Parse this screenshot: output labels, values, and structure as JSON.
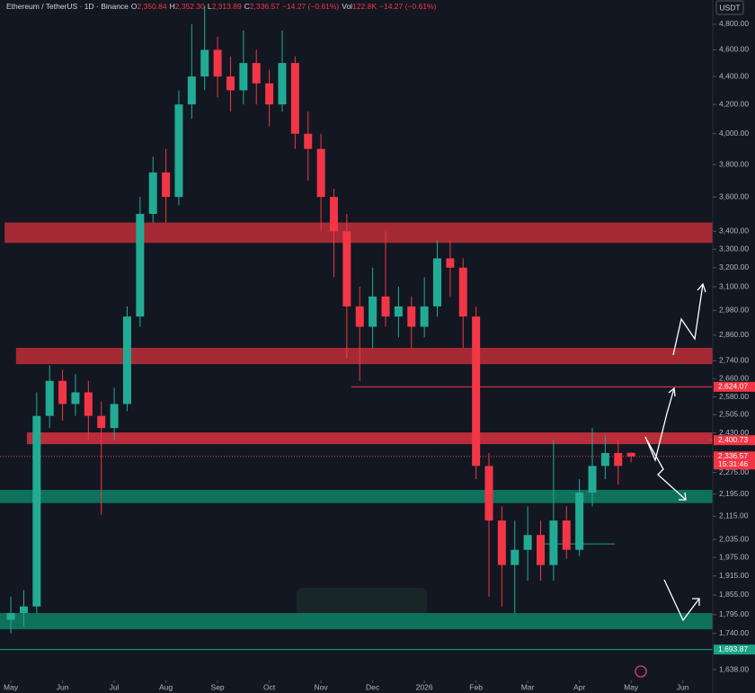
{
  "chart_data": {
    "type": "candlestick",
    "header": {
      "symbol": "Ethereum / TetherUS · 1D · Binance",
      "fields": [
        {
          "key": "O",
          "text": "2,350.84"
        },
        {
          "key": "H",
          "text": "2,352.30"
        },
        {
          "key": "L",
          "text": "2,313.89"
        },
        {
          "key": "C",
          "text": "2,336.57"
        },
        {
          "key": "",
          "text": "−14.27 (−0.61%)"
        },
        {
          "key": "Vol",
          "text": "122.8K"
        },
        {
          "key": "",
          "text": "−14.27 (−0.61%)"
        }
      ]
    },
    "currency": "USDT",
    "log_scale": true,
    "up_color": "#22ab94",
    "down_color": "#f23645",
    "x": [
      0,
      0.25,
      0.5,
      0.75,
      1,
      1.25,
      1.5,
      1.75,
      2,
      2.25,
      2.5,
      2.75,
      3,
      3.25,
      3.5,
      3.75,
      4,
      4.25,
      4.5,
      4.75,
      5,
      5.25,
      5.5,
      5.75,
      6,
      6.25,
      6.5,
      6.75,
      7,
      7.25,
      7.5,
      7.75,
      8,
      8.25,
      8.5,
      8.75,
      9,
      9.25,
      9.5,
      9.75,
      10,
      10.25,
      10.5,
      10.75,
      11,
      11.25,
      11.5,
      11.75,
      12
    ],
    "open": [
      1780,
      1800,
      1820,
      2500,
      2650,
      2550,
      2600,
      2500,
      2450,
      2550,
      2950,
      3500,
      3750,
      3600,
      4200,
      4400,
      4600,
      4400,
      4300,
      4500,
      4350,
      4200,
      4500,
      4000,
      3900,
      3600,
      3400,
      3000,
      2900,
      3050,
      2950,
      3000,
      2900,
      3000,
      3250,
      3200,
      2950,
      2300,
      2100,
      1950,
      2000,
      2050,
      1950,
      2100,
      2000,
      2200,
      2300,
      2350,
      2350.84
    ],
    "high": [
      1850,
      1870,
      2600,
      2720,
      2700,
      2680,
      2650,
      2560,
      2620,
      3000,
      3600,
      3850,
      3900,
      4300,
      4800,
      4950,
      4700,
      4550,
      4750,
      4600,
      4450,
      4750,
      4550,
      4150,
      4000,
      3650,
      3500,
      3100,
      3200,
      3400,
      3100,
      3050,
      3150,
      3350,
      3350,
      3250,
      3000,
      2350,
      2150,
      2100,
      2150,
      2100,
      2400,
      2150,
      2250,
      2450,
      2420,
      2400,
      2352.3
    ],
    "low": [
      1740,
      1760,
      1800,
      2450,
      2480,
      2500,
      2400,
      2120,
      2400,
      2520,
      2900,
      3450,
      3450,
      3550,
      4100,
      4300,
      4250,
      4150,
      4200,
      4200,
      4050,
      4150,
      3900,
      3700,
      3400,
      3150,
      2750,
      2650,
      2800,
      2900,
      2850,
      2800,
      2850,
      2950,
      3050,
      2800,
      2250,
      1850,
      1820,
      1800,
      1900,
      1900,
      1900,
      1970,
      1980,
      2150,
      2250,
      2230,
      2313.89
    ],
    "close": [
      1800,
      1820,
      2500,
      2650,
      2550,
      2600,
      2500,
      2450,
      2550,
      2950,
      3500,
      3750,
      3600,
      4200,
      4400,
      4600,
      4400,
      4300,
      4500,
      4350,
      4200,
      4500,
      4000,
      3900,
      3600,
      3400,
      3000,
      2900,
      3050,
      2950,
      3000,
      2900,
      3000,
      3250,
      3200,
      2950,
      2300,
      2100,
      1950,
      2000,
      2050,
      1950,
      2100,
      2000,
      2200,
      2300,
      2350,
      2300,
      2336.57
    ],
    "xlim": [
      -0.21,
      13.58
    ],
    "xticks": [
      {
        "value": 0,
        "label": "May"
      },
      {
        "value": 1,
        "label": "Jun"
      },
      {
        "value": 2,
        "label": "Jul"
      },
      {
        "value": 3,
        "label": "Aug"
      },
      {
        "value": 4,
        "label": "Sep"
      },
      {
        "value": 5,
        "label": "Oct"
      },
      {
        "value": 6,
        "label": "Nov"
      },
      {
        "value": 7,
        "label": "Dec"
      },
      {
        "value": 8,
        "label": "2026"
      },
      {
        "value": 9,
        "label": "Feb"
      },
      {
        "value": 10,
        "label": "Mar"
      },
      {
        "value": 11,
        "label": "Apr"
      },
      {
        "value": 12,
        "label": "May"
      },
      {
        "value": 13,
        "label": "Jun"
      }
    ],
    "ylim": [
      1609,
      4998
    ],
    "yticks": [
      {
        "value": 4800,
        "label": "4,800.00"
      },
      {
        "value": 4600,
        "label": "4,600.00"
      },
      {
        "value": 4400,
        "label": "4,400.00"
      },
      {
        "value": 4200,
        "label": "4,200.00"
      },
      {
        "value": 4000,
        "label": "4,000.00"
      },
      {
        "value": 3800,
        "label": "3,800.00"
      },
      {
        "value": 3600,
        "label": "3,600.00"
      },
      {
        "value": 3400,
        "label": "3,400.00"
      },
      {
        "value": 3300,
        "label": "3,300.00"
      },
      {
        "value": 3200,
        "label": "3,200.00"
      },
      {
        "value": 3100,
        "label": "3,100.00"
      },
      {
        "value": 2980,
        "label": "2,980.00"
      },
      {
        "value": 2860,
        "label": "2,860.00"
      },
      {
        "value": 2740,
        "label": "2,740.00"
      },
      {
        "value": 2660,
        "label": "2,660.00"
      },
      {
        "value": 2580,
        "label": "2,580.00"
      },
      {
        "value": 2505,
        "label": "2,505.00"
      },
      {
        "value": 2430,
        "label": "2,430.00"
      },
      {
        "value": 2275,
        "label": "2,275.00"
      },
      {
        "value": 2195,
        "label": "2,195.00"
      },
      {
        "value": 2115,
        "label": "2,115.00"
      },
      {
        "value": 2035,
        "label": "2,035.00"
      },
      {
        "value": 1975,
        "label": "1,975.00"
      },
      {
        "value": 1915,
        "label": "1,915.00"
      },
      {
        "value": 1855,
        "label": "1,855.00"
      },
      {
        "value": 1795,
        "label": "1,795.00"
      },
      {
        "value": 1740,
        "label": "1,740.00"
      },
      {
        "value": 1638,
        "label": "1,638.00"
      }
    ],
    "zones": [
      {
        "low": 3335,
        "high": 3450,
        "from": -0.12,
        "color": "#b22c38"
      },
      {
        "low": 2725,
        "high": 2800,
        "from": 0.1,
        "color": "#b22c38"
      },
      {
        "low": 2385,
        "high": 2432,
        "from": 0.31,
        "color": "#c8303d"
      },
      {
        "low": 2162,
        "high": 2210,
        "from": -0.21,
        "color": "#0e7a62"
      },
      {
        "low": 1752,
        "high": 1800,
        "from": -0.21,
        "color": "#0e7a62"
      }
    ],
    "levels": [
      {
        "value": 2624.07,
        "label": "2,624.07",
        "from": 6.59,
        "color": "#f23645"
      },
      {
        "value": 1693.87,
        "label": "1,693.87",
        "from": -0.21,
        "color": "#1aa386"
      },
      {
        "value": 2336.57,
        "label": "2,336.57",
        "sub": "15:31:46",
        "from": -0.21,
        "color": "#f23645"
      },
      {
        "value": 2400.73,
        "label": "2,400.73",
        "from": 13.5,
        "color": "#f23645"
      },
      {
        "value": 2020,
        "from": 10.28,
        "to": 11.69,
        "color": "#1aa386"
      }
    ]
  }
}
